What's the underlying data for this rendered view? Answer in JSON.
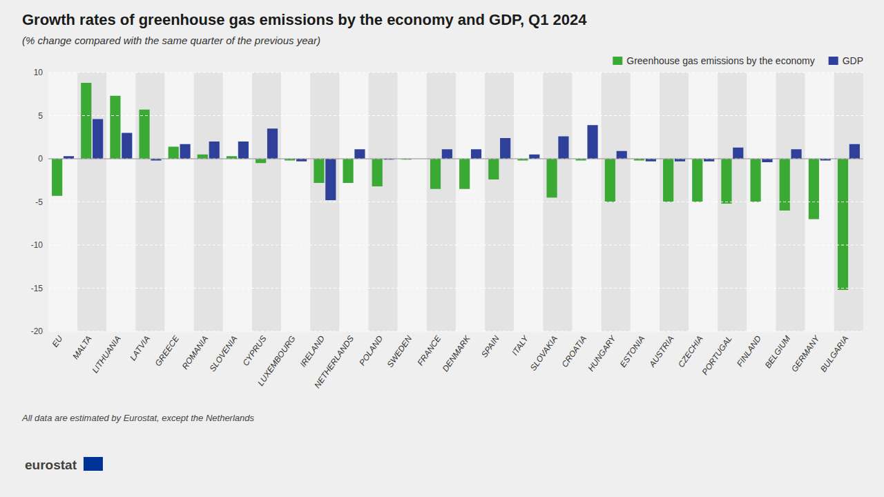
{
  "chart_data": {
    "type": "bar",
    "title": "Growth rates of greenhouse gas emissions by the economy and GDP, Q1 2024",
    "subtitle": "(% change compared with the same quarter of the previous year)",
    "annotations": [
      "All data are estimated by Eurostat, except the Netherlands",
      "eurostat"
    ],
    "categories": [
      "EU",
      "MALTA",
      "LITHUANIA",
      "LATVIA",
      "GREECE",
      "ROMANIA",
      "SLOVENIA",
      "CYPRUS",
      "LUXEMBOURG",
      "IRELAND",
      "NETHERLANDS",
      "POLAND",
      "SWEDEN",
      "FRANCE",
      "DENMARK",
      "SPAIN",
      "ITALY",
      "SLOVAKIA",
      "CROATIA",
      "HUNGARY",
      "ESTONIA",
      "AUSTRIA",
      "CZECHIA",
      "PORTUGAL",
      "FINLAND",
      "BELGIUM",
      "GERMANY",
      "BULGARIA"
    ],
    "series": [
      {
        "name": "Greenhouse gas emissions by the economy",
        "color": "#3aaa35",
        "values": [
          -4.3,
          8.8,
          7.3,
          5.7,
          1.4,
          0.5,
          0.3,
          -0.5,
          -0.2,
          -2.8,
          -2.8,
          -3.2,
          -0.1,
          -3.5,
          -3.5,
          -2.4,
          -0.2,
          -4.5,
          -0.2,
          -5.0,
          -0.2,
          -5.0,
          -5.0,
          -5.2,
          -5.0,
          -6.0,
          -7.0,
          -15.2
        ]
      },
      {
        "name": "GDP",
        "color": "#2e4099",
        "values": [
          0.3,
          4.6,
          3.0,
          -0.2,
          1.7,
          2.0,
          2.0,
          3.5,
          -0.3,
          -4.8,
          1.1,
          -0.1,
          0.0,
          1.1,
          1.1,
          2.4,
          0.5,
          2.6,
          3.9,
          0.9,
          -0.3,
          -0.3,
          -0.3,
          1.3,
          -0.4,
          1.1,
          -0.2,
          1.7
        ]
      }
    ],
    "ylim": [
      -20,
      10
    ],
    "yticks": [
      -20,
      -15,
      -10,
      -5,
      0,
      5,
      10
    ],
    "grid": true,
    "legend": "upper right"
  }
}
